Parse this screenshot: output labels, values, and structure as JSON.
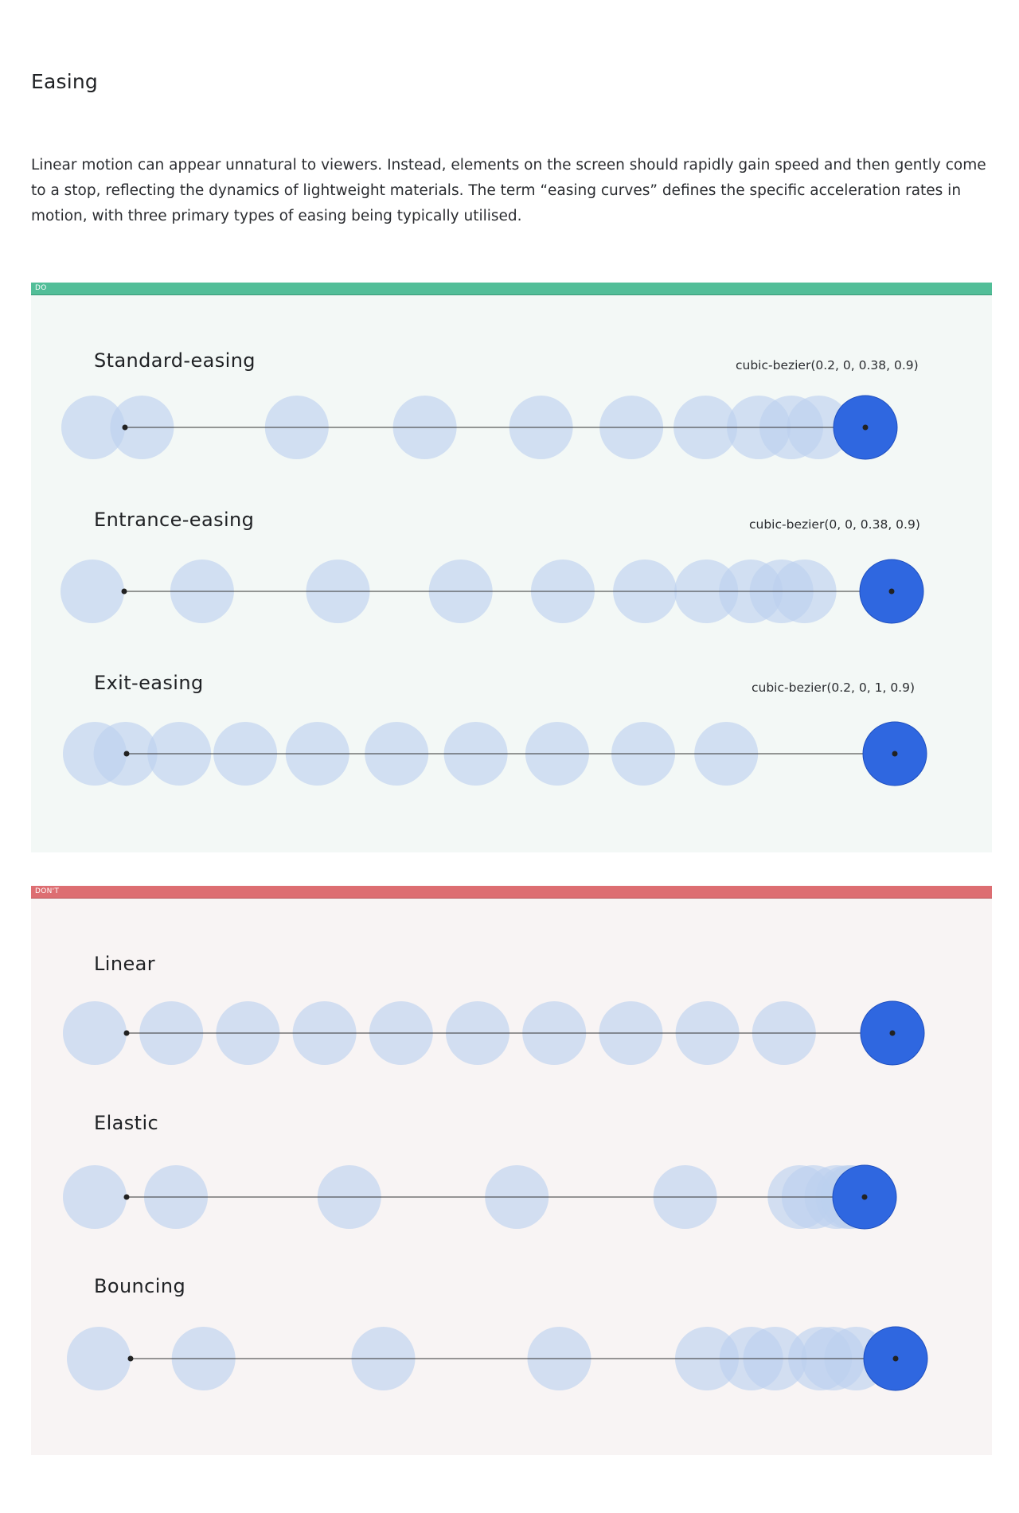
{
  "title": "Easing",
  "intro": "Linear motion can appear unnatural to viewers. Instead, elements on the screen should rapidly gain speed and then gently come to a stop, reflecting the dynamics of lightweight materials. The term “easing curves” defines the specific acceleration rates in motion, with three primary types of easing being typically utilised.",
  "colors": {
    "do_bar": "#52be98",
    "dont_bar": "#dd6e72",
    "ghost_circle": "#bcd0ef",
    "final_circle": "#2f67e0",
    "track_line": "#333333"
  },
  "panels": {
    "do": {
      "tag": "DO",
      "rows": [
        {
          "title": "Standard-easing",
          "curve": "cubic-bezier(0.2, 0, 0.38, 0.9)",
          "positions": [
            0,
            0.066,
            0.275,
            0.448,
            0.605,
            0.727,
            0.827,
            0.899,
            0.943,
            0.98
          ]
        },
        {
          "title": "Entrance-easing",
          "curve": "cubic-bezier(0, 0, 0.38, 0.9)",
          "positions": [
            0,
            0.143,
            0.32,
            0.48,
            0.613,
            0.72,
            0.8,
            0.858,
            0.898,
            0.928
          ]
        },
        {
          "title": "Exit-easing",
          "curve": "cubic-bezier(0.2, 0, 1, 0.9)",
          "positions": [
            0,
            0.04,
            0.11,
            0.196,
            0.29,
            0.393,
            0.496,
            0.602,
            0.714,
            0.822
          ]
        }
      ]
    },
    "dont": {
      "tag": "DON'T",
      "rows": [
        {
          "title": "Linear",
          "positions": [
            0,
            0.1,
            0.2,
            0.3,
            0.4,
            0.5,
            0.6,
            0.7,
            0.8,
            0.9
          ]
        },
        {
          "title": "Elastic",
          "positions": [
            0,
            0.11,
            0.345,
            0.572,
            0.8,
            0.955,
            0.974,
            1.005,
            1.02,
            1.027
          ]
        },
        {
          "title": "Bouncing",
          "positions": [
            0,
            0.137,
            0.372,
            0.602,
            0.795,
            0.853,
            0.884,
            0.943,
            0.96,
            0.99
          ]
        }
      ]
    }
  }
}
